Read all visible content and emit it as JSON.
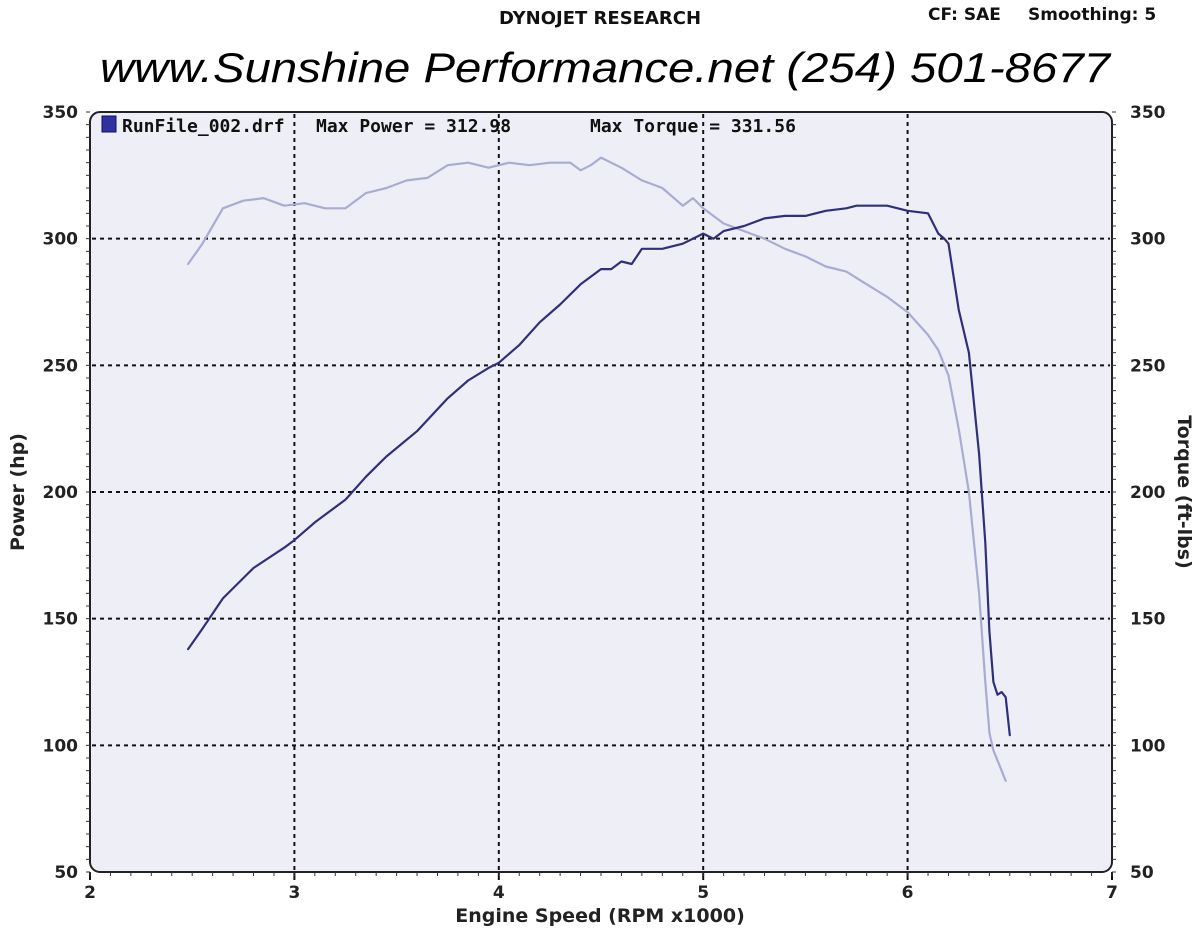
{
  "header": {
    "company": "DYNOJET RESEARCH",
    "cf_label": "CF: SAE",
    "smoothing_label": "Smoothing: 5",
    "website": "www.Sunshine Performance.net  (254) 501-8677"
  },
  "legend": {
    "run_label": "RunFile_002.drf",
    "max_power_label": "Max Power = 312.98",
    "max_torque_label": "Max Torque = 331.56"
  },
  "chart_data": {
    "type": "line",
    "xlabel": "Engine Speed (RPM x1000)",
    "ylabel_left": "Power (hp)",
    "ylabel_right": "Torque (ft-lbs)",
    "xlim": [
      2,
      7
    ],
    "ylim": [
      50,
      350
    ],
    "x_ticks": [
      "2",
      "3",
      "4",
      "5",
      "6",
      "7"
    ],
    "y_ticks": [
      "50",
      "100",
      "150",
      "200",
      "250",
      "300",
      "350"
    ],
    "grid": true,
    "background_color": "#eeeef6",
    "series": [
      {
        "role": "power",
        "color": "#30307a",
        "x": [
          2.48,
          2.55,
          2.65,
          2.8,
          2.95,
          3.0,
          3.1,
          3.25,
          3.35,
          3.45,
          3.6,
          3.75,
          3.85,
          3.95,
          4.0,
          4.1,
          4.2,
          4.3,
          4.4,
          4.5,
          4.55,
          4.6,
          4.65,
          4.7,
          4.8,
          4.9,
          5.0,
          5.05,
          5.1,
          5.2,
          5.3,
          5.4,
          5.5,
          5.6,
          5.7,
          5.75,
          5.8,
          5.9,
          6.0,
          6.1,
          6.15,
          6.18,
          6.2,
          6.25,
          6.3,
          6.35,
          6.38,
          6.4,
          6.42,
          6.44,
          6.46,
          6.48,
          6.5
        ],
        "y": [
          138,
          146,
          158,
          170,
          178,
          181,
          188,
          197,
          206,
          214,
          224,
          237,
          244,
          249,
          251,
          258,
          267,
          274,
          282,
          288,
          288,
          291,
          290,
          296,
          296,
          298,
          302,
          300,
          303,
          305,
          308,
          309,
          309,
          311,
          312,
          313,
          313,
          313,
          311,
          310,
          302,
          300,
          298,
          272,
          255,
          215,
          180,
          145,
          125,
          120,
          121,
          119,
          104
        ]
      },
      {
        "role": "torque",
        "color": "#a8acd2",
        "x": [
          2.48,
          2.55,
          2.65,
          2.75,
          2.85,
          2.95,
          3.05,
          3.15,
          3.25,
          3.35,
          3.45,
          3.55,
          3.65,
          3.75,
          3.85,
          3.95,
          4.05,
          4.15,
          4.25,
          4.35,
          4.4,
          4.45,
          4.5,
          4.55,
          4.6,
          4.7,
          4.8,
          4.9,
          4.95,
          5.0,
          5.1,
          5.2,
          5.3,
          5.4,
          5.5,
          5.6,
          5.7,
          5.8,
          5.9,
          6.0,
          6.1,
          6.15,
          6.2,
          6.25,
          6.3,
          6.35,
          6.38,
          6.4,
          6.42,
          6.45,
          6.48
        ],
        "y": [
          290,
          298,
          312,
          315,
          316,
          313,
          314,
          312,
          312,
          318,
          320,
          323,
          324,
          329,
          330,
          328,
          330,
          329,
          330,
          330,
          327,
          329,
          332,
          330,
          328,
          323,
          320,
          313,
          316,
          312,
          306,
          303,
          300,
          296,
          293,
          289,
          287,
          282,
          277,
          271,
          262,
          256,
          246,
          225,
          200,
          160,
          125,
          105,
          98,
          92,
          86
        ]
      }
    ]
  }
}
